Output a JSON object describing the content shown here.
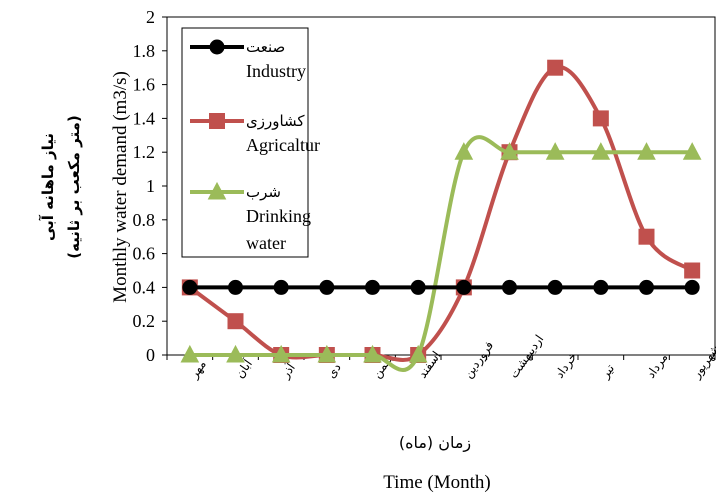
{
  "chart_data": {
    "type": "line",
    "categories": [
      "مهر",
      "آبان",
      "آذر",
      "دی",
      "بهمن",
      "اسفند",
      "فروردین",
      "اردیبهشت",
      "خرداد",
      "تیر",
      "مرداد",
      "شهریور"
    ],
    "series": [
      {
        "name": "صنعت",
        "name_en": "Industry",
        "marker": "circle",
        "color": "#000000",
        "values": [
          0.4,
          0.4,
          0.4,
          0.4,
          0.4,
          0.4,
          0.4,
          0.4,
          0.4,
          0.4,
          0.4,
          0.4
        ]
      },
      {
        "name": "کشاورزی",
        "name_en": "Agricaltur",
        "marker": "square",
        "color": "#C0504D",
        "values": [
          0.4,
          0.2,
          0,
          0,
          0,
          0,
          0.4,
          1.2,
          1.7,
          1.4,
          0.7,
          0.5
        ]
      },
      {
        "name": "شرب",
        "name_en": "Drinking water",
        "marker": "triangle",
        "color": "#9BBB59",
        "values": [
          0,
          0,
          0,
          0,
          0,
          0,
          1.2,
          1.2,
          1.2,
          1.2,
          1.2,
          1.2
        ]
      }
    ],
    "ylim": [
      0,
      2
    ],
    "yticks": [
      "0",
      "0.2",
      "0.4",
      "0.6",
      "0.8",
      "1",
      "1.2",
      "1.4",
      "1.6",
      "1.8",
      "2"
    ],
    "ylabel_en": "Monthly water demand (m3/s)",
    "ylabel_fa_line1": "نیاز ماهانه آبی",
    "ylabel_fa_line2": "(متر مکعب بر ثانیه)",
    "xlabel_fa": "زمان (ماه)",
    "xlabel_en": "Time (Month)",
    "legend_position": "top-left",
    "smooth": true,
    "grid": false
  }
}
